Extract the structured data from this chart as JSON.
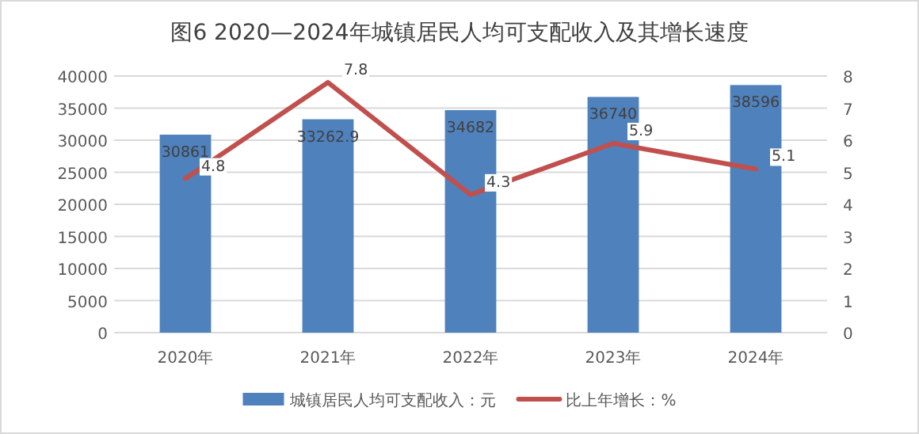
{
  "chart_data": {
    "type": "bar",
    "title": "图6  2020—2024年城镇居民人均可支配收入及其增长速度",
    "categories": [
      "2020年",
      "2021年",
      "2022年",
      "2023年",
      "2024年"
    ],
    "series": [
      {
        "name": "城镇居民人均可支配收入：元",
        "color": "#4f81bd",
        "values": [
          30861,
          33262.9,
          34682,
          36740,
          38596
        ]
      },
      {
        "name": "比上年增长：%",
        "type": "line",
        "axis": "y2",
        "color": "#c0504d",
        "values": [
          4.8,
          7.8,
          4.3,
          5.9,
          5.1
        ]
      }
    ],
    "ylim": [
      0,
      40000
    ],
    "yticks": [
      0,
      5000,
      10000,
      15000,
      20000,
      25000,
      30000,
      35000,
      40000
    ],
    "y2lim": [
      0,
      8
    ],
    "y2ticks": [
      0,
      1,
      2,
      3,
      4,
      5,
      6,
      7,
      8
    ],
    "grid": "y",
    "legend": "bottom",
    "data_labels": true
  }
}
